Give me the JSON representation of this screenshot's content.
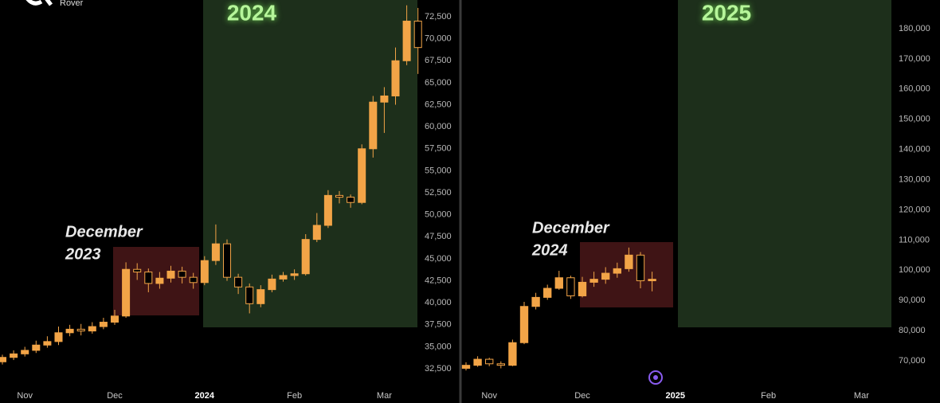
{
  "brand": "Rover",
  "chart_data": [
    {
      "type": "candlestick",
      "highlight_label": [
        "December",
        "2023"
      ],
      "year_label": "2024",
      "categories": [
        null,
        null,
        "Nov",
        null,
        null,
        null,
        null,
        null,
        null,
        null,
        "Dec",
        null,
        null,
        null,
        null,
        null,
        null,
        null,
        "2024",
        null,
        null,
        null,
        null,
        null,
        null,
        null,
        "Feb",
        null,
        null,
        null,
        null,
        null,
        null,
        null,
        "Mar",
        null,
        null,
        null
      ],
      "open": [
        33300,
        33800,
        34200,
        34600,
        35200,
        35600,
        36600,
        37000,
        36800,
        37300,
        37800,
        38500,
        43800,
        43500,
        42200,
        42800,
        43600,
        42900,
        42300,
        44800,
        46700,
        42900,
        41800,
        39900,
        41500,
        42700,
        43100,
        43300,
        47200,
        48800,
        52200,
        52000,
        51400,
        57500,
        62800,
        63500,
        67500,
        72000
      ],
      "high": [
        34100,
        34600,
        35000,
        35700,
        36200,
        37300,
        37500,
        37600,
        37800,
        38300,
        39200,
        44600,
        44500,
        43900,
        43500,
        44200,
        44100,
        43400,
        45300,
        48900,
        47200,
        43300,
        42200,
        42000,
        43200,
        43500,
        43800,
        47800,
        50200,
        52800,
        52700,
        52300,
        58000,
        63500,
        64500,
        69000,
        73800,
        73500
      ],
      "low": [
        33000,
        33500,
        33900,
        34300,
        34900,
        35200,
        36200,
        36300,
        36500,
        37000,
        37500,
        38300,
        42600,
        41200,
        41600,
        42300,
        42200,
        41600,
        42000,
        44300,
        42500,
        41000,
        38800,
        39500,
        41200,
        42400,
        42600,
        43100,
        46900,
        48500,
        51300,
        50800,
        51200,
        56500,
        59300,
        62500,
        67000,
        66000
      ],
      "close": [
        33800,
        34200,
        34600,
        35200,
        35600,
        36600,
        37000,
        36800,
        37300,
        37800,
        38500,
        43800,
        43500,
        42200,
        42800,
        43600,
        42900,
        42300,
        44800,
        46700,
        42900,
        41800,
        39900,
        41500,
        42700,
        43100,
        43300,
        47200,
        48800,
        52200,
        52000,
        51400,
        57500,
        62800,
        63500,
        67500,
        72000,
        69000
      ],
      "color": "#f2a447",
      "ylim": [
        30700,
        74400
      ],
      "yticks": [
        {
          "value": 32500,
          "label": "32,500"
        },
        {
          "value": 35000,
          "label": "35,000"
        },
        {
          "value": 37500,
          "label": "37,500"
        },
        {
          "value": 40000,
          "label": "40,000"
        },
        {
          "value": 42500,
          "label": "42,500"
        },
        {
          "value": 45000,
          "label": "45,000"
        },
        {
          "value": 47500,
          "label": "47,500"
        },
        {
          "value": 50000,
          "label": "50,000"
        },
        {
          "value": 52500,
          "label": "52,500"
        },
        {
          "value": 55000,
          "label": "55,000"
        },
        {
          "value": 57500,
          "label": "57,500"
        },
        {
          "value": 60000,
          "label": "60,000"
        },
        {
          "value": 62500,
          "label": "62,500"
        },
        {
          "value": 65000,
          "label": "65,000"
        },
        {
          "value": 67500,
          "label": "67,500"
        },
        {
          "value": 70000,
          "label": "70,000"
        },
        {
          "value": 72500,
          "label": "72,500"
        }
      ],
      "grid": false
    },
    {
      "type": "candlestick",
      "highlight_label": [
        "December",
        "2024"
      ],
      "year_label": "2025",
      "categories": [
        null,
        null,
        "Nov",
        null,
        null,
        null,
        null,
        null,
        null,
        null,
        "Dec",
        null,
        null,
        null,
        null,
        null,
        null,
        null,
        "2025",
        null,
        null,
        null,
        null,
        null,
        null,
        null,
        "Feb",
        null,
        null,
        null,
        null,
        null,
        null,
        null,
        "Mar",
        null
      ],
      "open": [
        67500,
        68500,
        70500,
        69000,
        68500,
        76000,
        88000,
        91000,
        94000,
        97500,
        91500,
        96000,
        97000,
        99000,
        100500,
        105000,
        96500,
        null,
        null,
        null,
        null,
        null,
        null,
        null,
        null,
        null,
        null,
        null,
        null,
        null,
        null,
        null,
        null,
        null,
        null,
        null
      ],
      "high": [
        69500,
        71500,
        71000,
        69800,
        77000,
        89500,
        92500,
        95200,
        99800,
        98200,
        97800,
        99500,
        101000,
        102500,
        107500,
        106000,
        99500,
        null,
        null,
        null,
        null,
        null,
        null,
        null,
        null,
        null,
        null,
        null,
        null,
        null,
        null,
        null,
        null,
        null,
        null,
        null
      ],
      "low": [
        66800,
        68000,
        68200,
        67500,
        68200,
        75500,
        87000,
        90200,
        93500,
        90500,
        91000,
        94500,
        95500,
        97500,
        99500,
        94000,
        93000,
        null,
        null,
        null,
        null,
        null,
        null,
        null,
        null,
        null,
        null,
        null,
        null,
        null,
        null,
        null,
        null,
        null,
        null,
        null
      ],
      "close": [
        68500,
        70500,
        69000,
        68500,
        76000,
        88000,
        91000,
        94000,
        97500,
        91500,
        96000,
        97000,
        99000,
        100500,
        105000,
        96500,
        97000,
        null,
        null,
        null,
        null,
        null,
        null,
        null,
        null,
        null,
        null,
        null,
        null,
        null,
        null,
        null,
        null,
        null,
        null,
        null
      ],
      "color": "#f2a447",
      "ylim": [
        62080,
        189500
      ],
      "yticks": [
        {
          "value": 70000,
          "label": "70,000"
        },
        {
          "value": 80000,
          "label": "80,000"
        },
        {
          "value": 90000,
          "label": "90,000"
        },
        {
          "value": 100000,
          "label": "100,000"
        },
        {
          "value": 110000,
          "label": "110,000"
        },
        {
          "value": 120000,
          "label": "120,000"
        },
        {
          "value": 130000,
          "label": "130,000"
        },
        {
          "value": 140000,
          "label": "140,000"
        },
        {
          "value": 150000,
          "label": "150,000"
        },
        {
          "value": 160000,
          "label": "160,000"
        },
        {
          "value": 170000,
          "label": "170,000"
        },
        {
          "value": 180000,
          "label": "180,000"
        }
      ],
      "grid": false
    }
  ]
}
